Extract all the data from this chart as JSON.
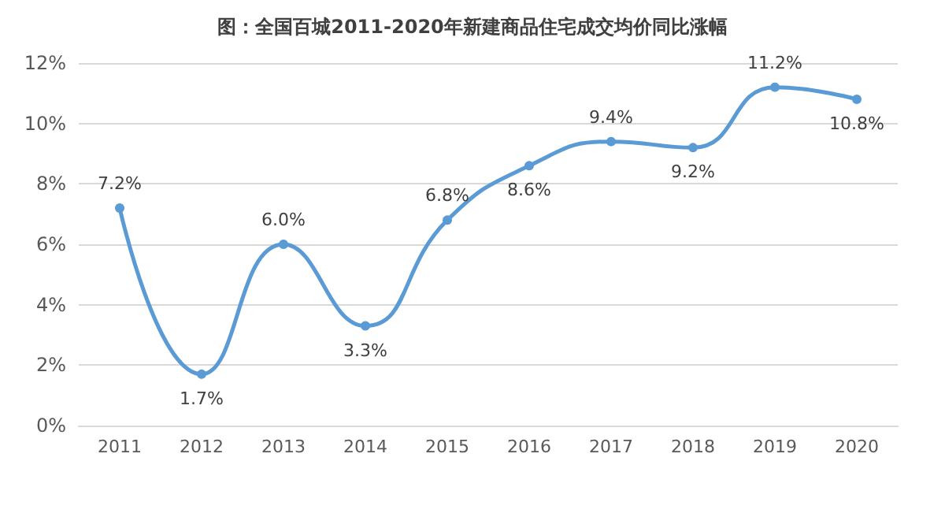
{
  "chart_data": {
    "type": "line",
    "title": "图：全国百城2011-2020年新建商品住宅成交均价同比涨幅",
    "categories": [
      "2011",
      "2012",
      "2013",
      "2014",
      "2015",
      "2016",
      "2017",
      "2018",
      "2019",
      "2020"
    ],
    "series": [
      {
        "color": "#5b9bd5",
        "values": [
          7.2,
          1.7,
          6.0,
          3.3,
          6.8,
          8.6,
          9.4,
          9.2,
          11.2,
          10.8
        ],
        "value_labels": [
          "7.2%",
          "1.7%",
          "6.0%",
          "3.3%",
          "6.8%",
          "8.6%",
          "9.4%",
          "9.2%",
          "11.2%",
          "10.8%"
        ]
      }
    ],
    "ylim": [
      0,
      12
    ],
    "yticks": [
      {
        "value": 0,
        "label": "0%"
      },
      {
        "value": 2,
        "label": "2%"
      },
      {
        "value": 4,
        "label": "4%"
      },
      {
        "value": 6,
        "label": "6%"
      },
      {
        "value": 8,
        "label": "8%"
      },
      {
        "value": 10,
        "label": "10%"
      },
      {
        "value": 12,
        "label": "12%"
      }
    ],
    "grid": "y",
    "marker": "circle",
    "line_style": "solid"
  }
}
